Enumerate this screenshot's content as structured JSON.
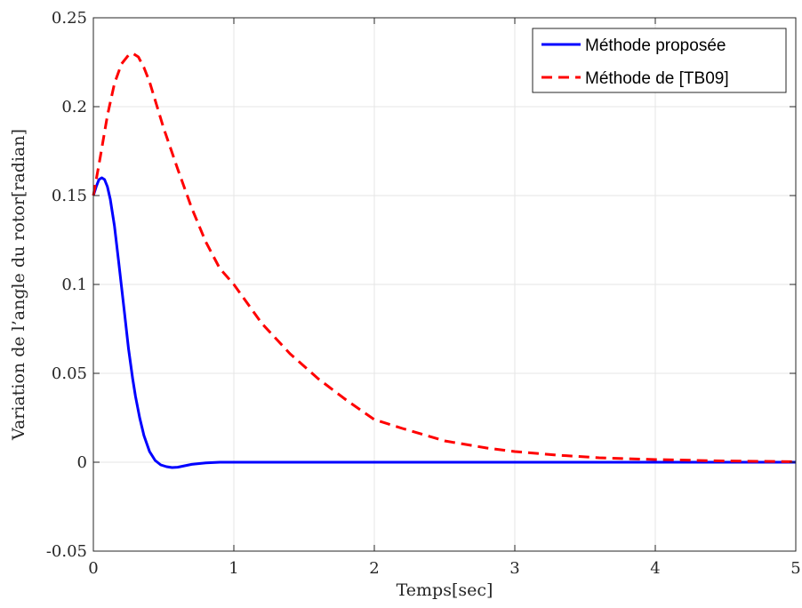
{
  "chart_data": {
    "type": "line",
    "xlabel": "Temps[sec]",
    "ylabel": "Variation de l’angle du rotor[radian]",
    "xlim": [
      0,
      5
    ],
    "ylim": [
      -0.05,
      0.25
    ],
    "xticks": [
      0,
      1,
      2,
      3,
      4,
      5
    ],
    "yticks": [
      -0.05,
      0,
      0.05,
      0.1,
      0.15,
      0.2,
      0.25
    ],
    "xtick_labels": [
      "0",
      "1",
      "2",
      "3",
      "4",
      "5"
    ],
    "ytick_labels": [
      "-0.05",
      "0",
      "0.05",
      "0.1",
      "0.15",
      "0.2",
      "0.25"
    ],
    "grid": true,
    "legend_position": "top-right",
    "series": [
      {
        "name": "Méthode proposée",
        "color": "#0000ff",
        "style": "solid",
        "x": [
          0,
          0.02,
          0.04,
          0.06,
          0.08,
          0.1,
          0.12,
          0.15,
          0.18,
          0.2,
          0.22,
          0.25,
          0.28,
          0.3,
          0.33,
          0.36,
          0.4,
          0.44,
          0.48,
          0.52,
          0.56,
          0.6,
          0.65,
          0.7,
          0.8,
          0.9,
          1.0,
          1.2,
          1.5,
          2.0,
          3.0,
          4.0,
          5.0
        ],
        "y": [
          0.15,
          0.155,
          0.159,
          0.16,
          0.159,
          0.155,
          0.148,
          0.133,
          0.113,
          0.099,
          0.085,
          0.064,
          0.047,
          0.037,
          0.025,
          0.015,
          0.006,
          0.001,
          -0.0015,
          -0.0025,
          -0.003,
          -0.0028,
          -0.002,
          -0.0012,
          -0.0004,
          0.0,
          0.0,
          0.0,
          0.0,
          0.0,
          0.0,
          0.0,
          0.0
        ]
      },
      {
        "name": "Méthode de [TB09]",
        "color": "#ff0000",
        "style": "dashed",
        "x": [
          0,
          0.05,
          0.1,
          0.15,
          0.2,
          0.25,
          0.28,
          0.32,
          0.36,
          0.4,
          0.45,
          0.5,
          0.6,
          0.7,
          0.8,
          0.9,
          1.0,
          1.2,
          1.4,
          1.6,
          1.8,
          2.0,
          2.2,
          2.5,
          2.8,
          3.0,
          3.3,
          3.6,
          4.0,
          4.5,
          5.0
        ],
        "y": [
          0.15,
          0.172,
          0.195,
          0.213,
          0.224,
          0.229,
          0.23,
          0.228,
          0.222,
          0.214,
          0.201,
          0.188,
          0.165,
          0.143,
          0.124,
          0.109,
          0.1,
          0.078,
          0.061,
          0.047,
          0.035,
          0.024,
          0.019,
          0.012,
          0.008,
          0.006,
          0.004,
          0.0025,
          0.0015,
          0.0007,
          0.0003
        ]
      }
    ]
  }
}
